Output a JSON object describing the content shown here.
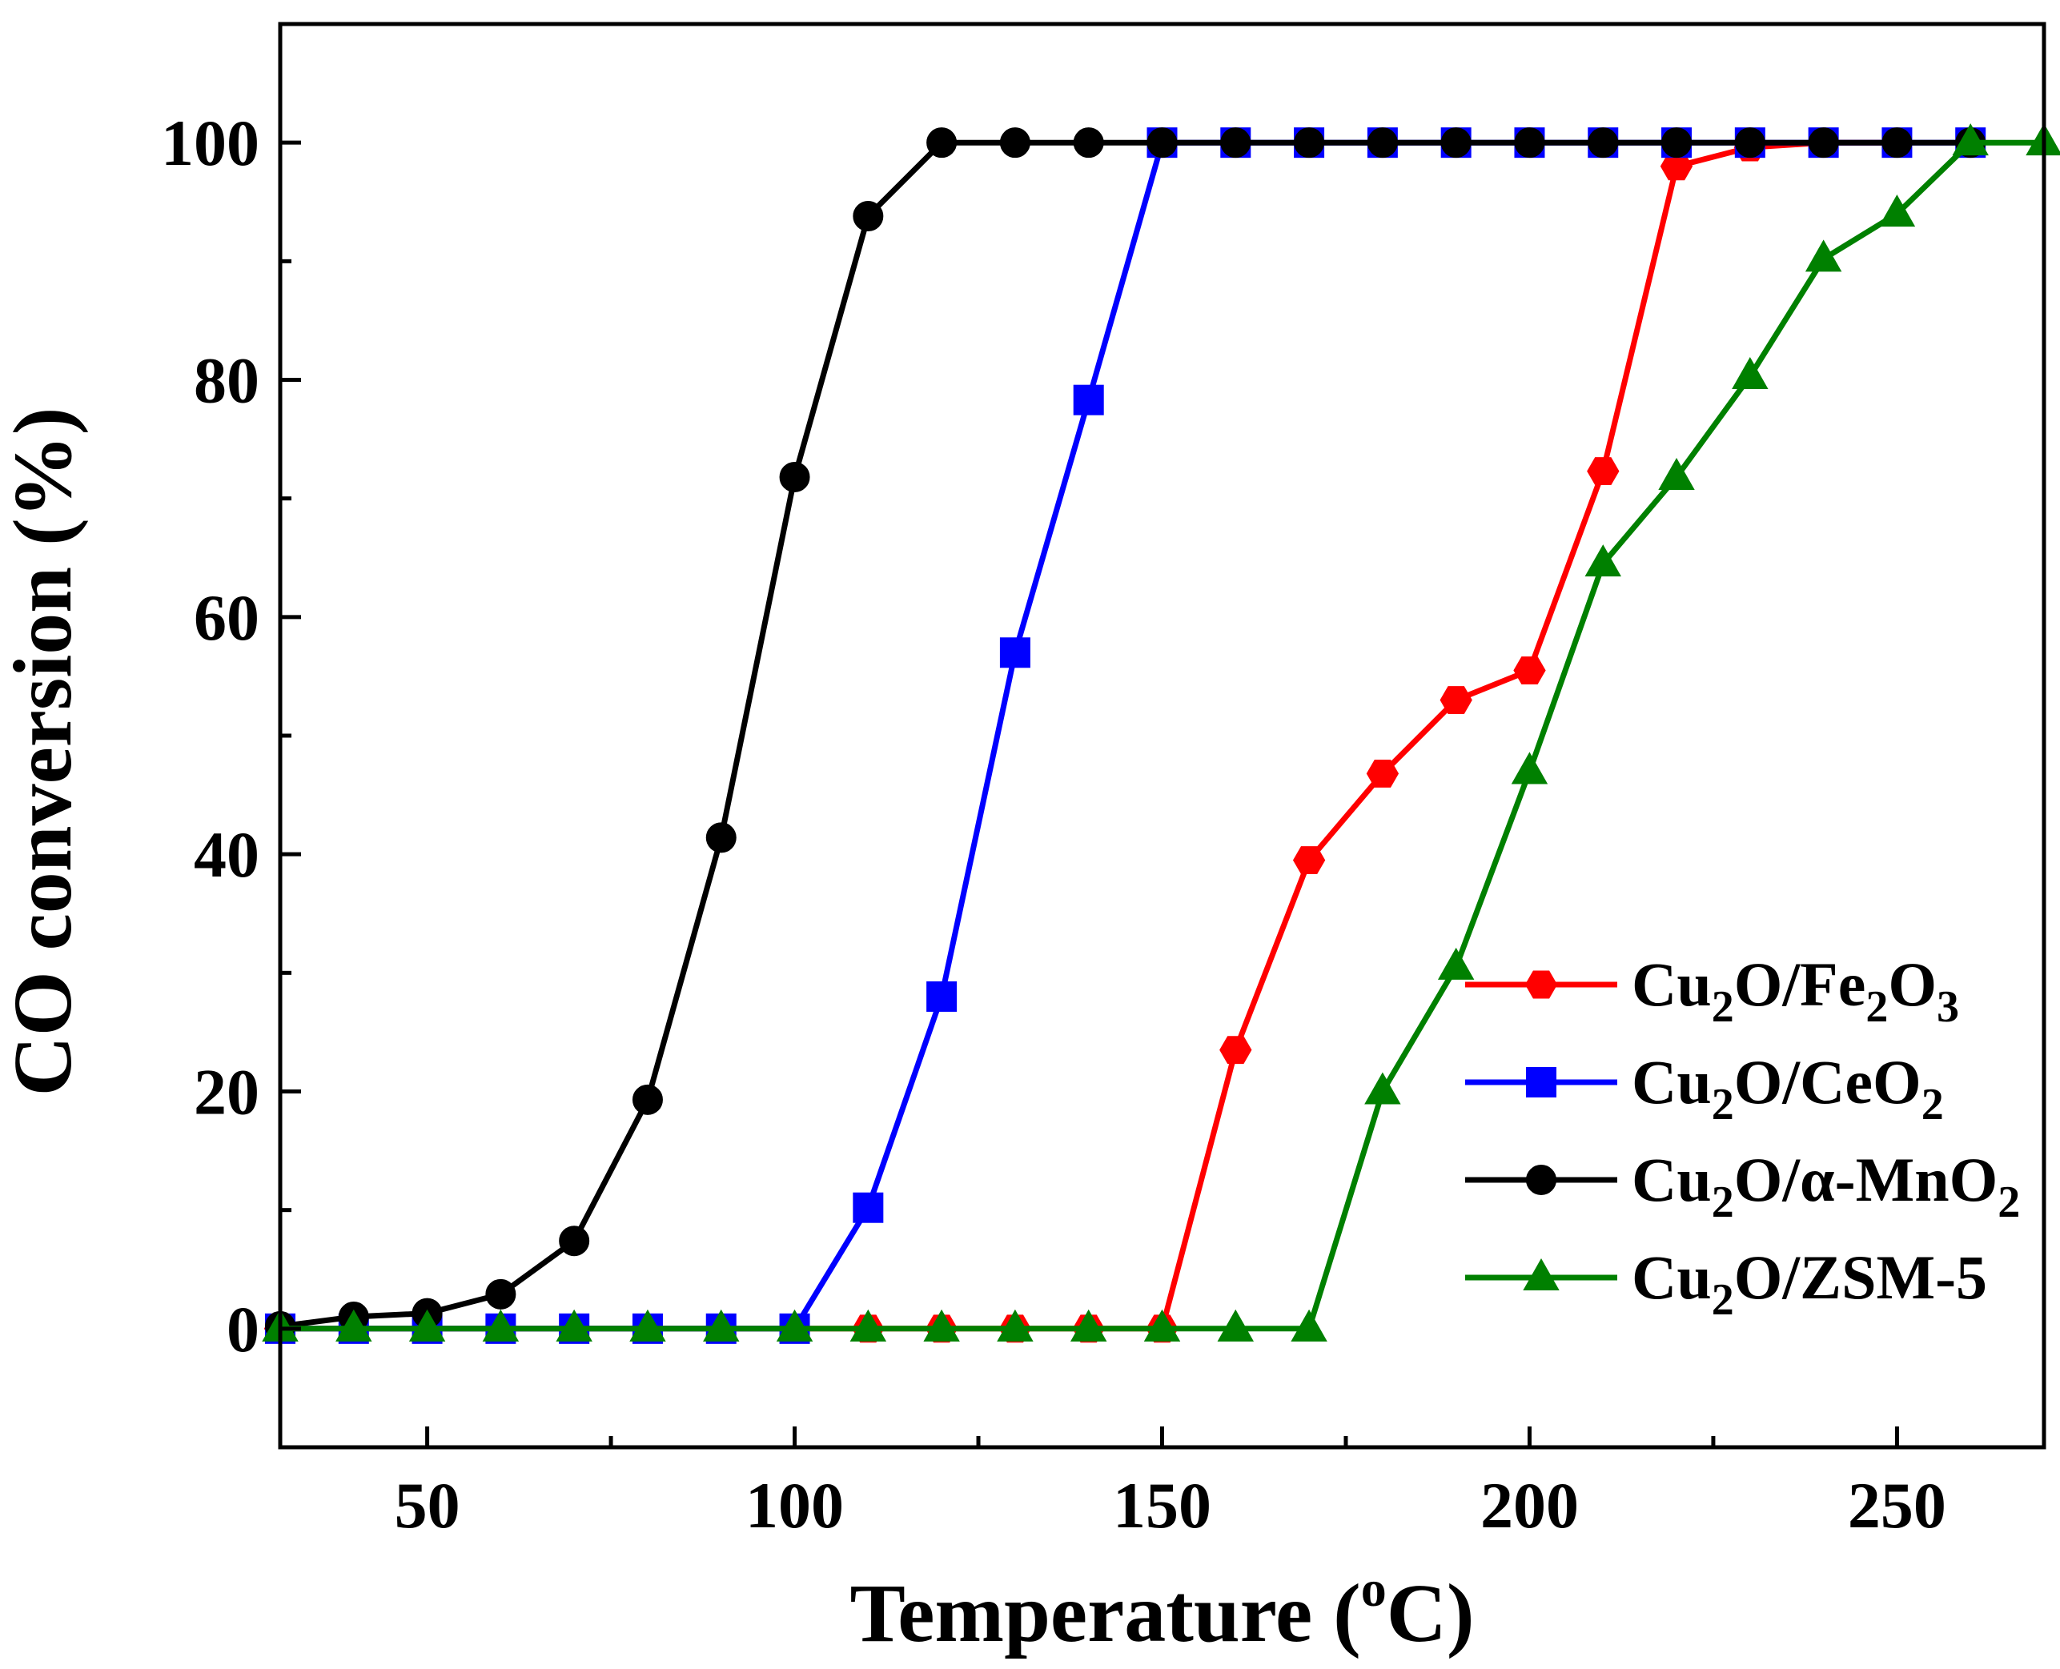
{
  "chart_data": {
    "type": "line",
    "title": "",
    "xlabel": "Temperature (°C)",
    "xlabel_parts": {
      "main": "Temperature (",
      "sup": "o",
      "unit": "C)"
    },
    "ylabel": "CO conversion (%)",
    "xlim": [
      30,
      270
    ],
    "ylim": [
      -10,
      110
    ],
    "xticks": [
      50,
      100,
      150,
      200,
      250
    ],
    "yticks": [
      0,
      20,
      40,
      60,
      80,
      100
    ],
    "xtick_labels": [
      "50",
      "100",
      "150",
      "200",
      "250"
    ],
    "ytick_labels": [
      "0",
      "20",
      "40",
      "60",
      "80",
      "100"
    ],
    "grid": false,
    "legend_position": "lower-right",
    "series": [
      {
        "name": "Cu2O/Fe2O3",
        "label_parts": [
          [
            "Cu",
            ""
          ],
          [
            "2",
            "sub"
          ],
          [
            "O/Fe",
            ""
          ],
          [
            "2",
            "sub"
          ],
          [
            "O",
            ""
          ],
          [
            "3",
            "sub"
          ]
        ],
        "color": "#ff0000",
        "marker": "hexagon",
        "x": [
          30,
          40,
          50,
          60,
          70,
          80,
          90,
          100,
          110,
          120,
          130,
          140,
          150,
          160,
          170,
          180,
          190,
          200,
          210,
          220,
          230,
          240,
          250
        ],
        "y": [
          0,
          0,
          0,
          0,
          0,
          0,
          0,
          0,
          0,
          0,
          0,
          0,
          0,
          23.5,
          39.5,
          46.8,
          53,
          55.5,
          72.3,
          98,
          99.6,
          100,
          100
        ]
      },
      {
        "name": "Cu2O/CeO2",
        "label_parts": [
          [
            "Cu",
            ""
          ],
          [
            "2",
            "sub"
          ],
          [
            "O/CeO",
            ""
          ],
          [
            "2",
            "sub"
          ]
        ],
        "color": "#0000ff",
        "marker": "square",
        "x": [
          30,
          40,
          50,
          60,
          70,
          80,
          90,
          100,
          110,
          120,
          130,
          140,
          150,
          160,
          170,
          180,
          190,
          200,
          210,
          220,
          230,
          240,
          250,
          260
        ],
        "y": [
          0,
          0,
          0,
          0,
          0,
          0,
          0,
          0,
          10.2,
          28,
          57,
          78.3,
          100,
          100,
          100,
          100,
          100,
          100,
          100,
          100,
          100,
          100,
          100,
          100
        ]
      },
      {
        "name": "Cu2O/α-MnO2",
        "label_parts": [
          [
            "Cu",
            ""
          ],
          [
            "2",
            "sub"
          ],
          [
            "O/α-MnO",
            ""
          ],
          [
            "2",
            "sub"
          ]
        ],
        "color": "#000000",
        "marker": "circle",
        "x": [
          30,
          40,
          50,
          60,
          70,
          80,
          90,
          100,
          110,
          120,
          130,
          140,
          150,
          160,
          170,
          180,
          190,
          200,
          210,
          220,
          230,
          240,
          250,
          260
        ],
        "y": [
          0.2,
          1,
          1.3,
          2.9,
          7.4,
          19.3,
          41.4,
          71.8,
          93.8,
          100,
          100,
          100,
          100,
          100,
          100,
          100,
          100,
          100,
          100,
          100,
          100,
          100,
          100,
          100
        ]
      },
      {
        "name": "Cu2O/ZSM-5",
        "label_parts": [
          [
            "Cu",
            ""
          ],
          [
            "2",
            "sub"
          ],
          [
            "O/ZSM-5",
            ""
          ]
        ],
        "color": "#008000",
        "marker": "triangle",
        "x": [
          30,
          40,
          50,
          60,
          70,
          80,
          90,
          100,
          110,
          120,
          130,
          140,
          150,
          160,
          170,
          180,
          190,
          200,
          210,
          220,
          230,
          240,
          250,
          260,
          270
        ],
        "y": [
          0,
          0,
          0,
          0,
          0,
          0,
          0,
          0,
          0,
          0,
          0,
          0,
          0,
          0,
          0,
          20,
          30.5,
          47,
          64.5,
          71.8,
          80.3,
          90.2,
          94,
          100,
          100
        ]
      }
    ]
  }
}
